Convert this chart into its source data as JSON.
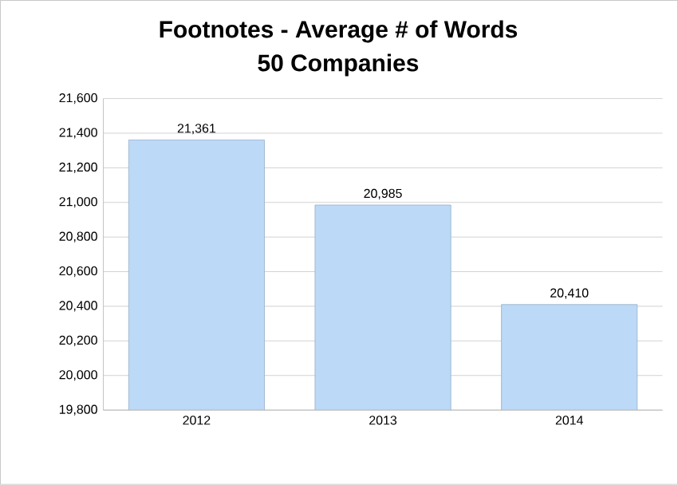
{
  "chart_data": {
    "type": "bar",
    "title": "Footnotes - Average # of Words",
    "subtitle": "50 Companies",
    "categories": [
      "2012",
      "2013",
      "2014"
    ],
    "values": [
      21361,
      20985,
      20410
    ],
    "value_labels": [
      "21,361",
      "20,985",
      "20,410"
    ],
    "color": "#bcd9f7",
    "ylim": [
      19800,
      21600
    ],
    "yticks": [
      {
        "value": 19800,
        "label": "19,800"
      },
      {
        "value": 20000,
        "label": "20,000"
      },
      {
        "value": 20200,
        "label": "20,200"
      },
      {
        "value": 20400,
        "label": "20,400"
      },
      {
        "value": 20600,
        "label": "20,600"
      },
      {
        "value": 20800,
        "label": "20,800"
      },
      {
        "value": 21000,
        "label": "21,000"
      },
      {
        "value": 21200,
        "label": "21,200"
      },
      {
        "value": 21400,
        "label": "21,400"
      },
      {
        "value": 21600,
        "label": "21,600"
      }
    ],
    "grid": "y"
  }
}
